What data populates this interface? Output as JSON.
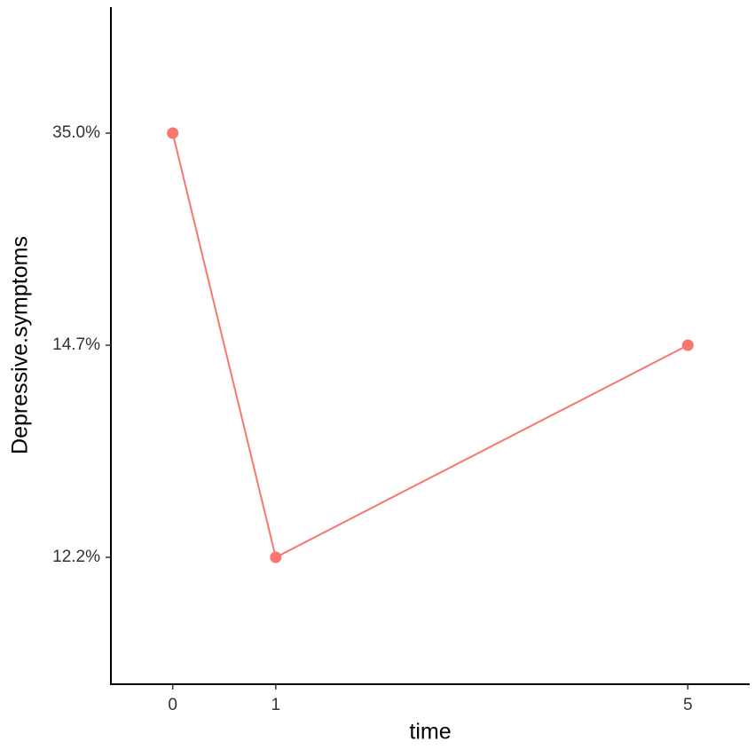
{
  "chart_data": {
    "type": "line",
    "x_label": "time",
    "y_label": "Depressive.symptoms",
    "x": [
      0,
      1,
      5
    ],
    "series": [
      {
        "color": "#F8766D",
        "values": [
          35.0,
          12.2,
          14.7
        ]
      }
    ],
    "xlim": [
      -0.6,
      5.6
    ],
    "xticks": [
      0,
      1,
      5
    ],
    "y_scale": "discrete",
    "yticks": [
      {
        "value": 12.2,
        "label": "12.2%"
      },
      {
        "value": 14.7,
        "label": "14.7%"
      },
      {
        "value": 35.0,
        "label": "35.0%"
      }
    ],
    "grid": false
  }
}
